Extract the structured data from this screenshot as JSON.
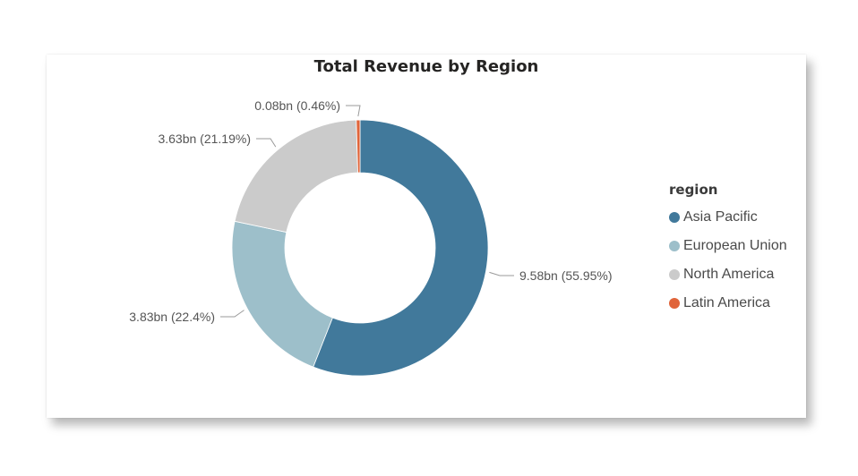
{
  "chart_data": {
    "type": "pie",
    "title": "Total Revenue by Region",
    "legend_title": "region",
    "legend_position": "right",
    "donut": true,
    "categories": [
      "Asia Pacific",
      "European Union",
      "North America",
      "Latin America"
    ],
    "values": [
      9.58,
      3.83,
      3.63,
      0.08
    ],
    "percentages": [
      55.95,
      22.4,
      21.19,
      0.46
    ],
    "data_labels": [
      "9.58bn (55.95%)",
      "3.83bn (22.4%)",
      "3.63bn (21.19%)",
      "0.08bn (0.46%)"
    ],
    "colors": [
      "#41799b",
      "#9dbfca",
      "#cbcbcb",
      "#e0643a"
    ]
  }
}
